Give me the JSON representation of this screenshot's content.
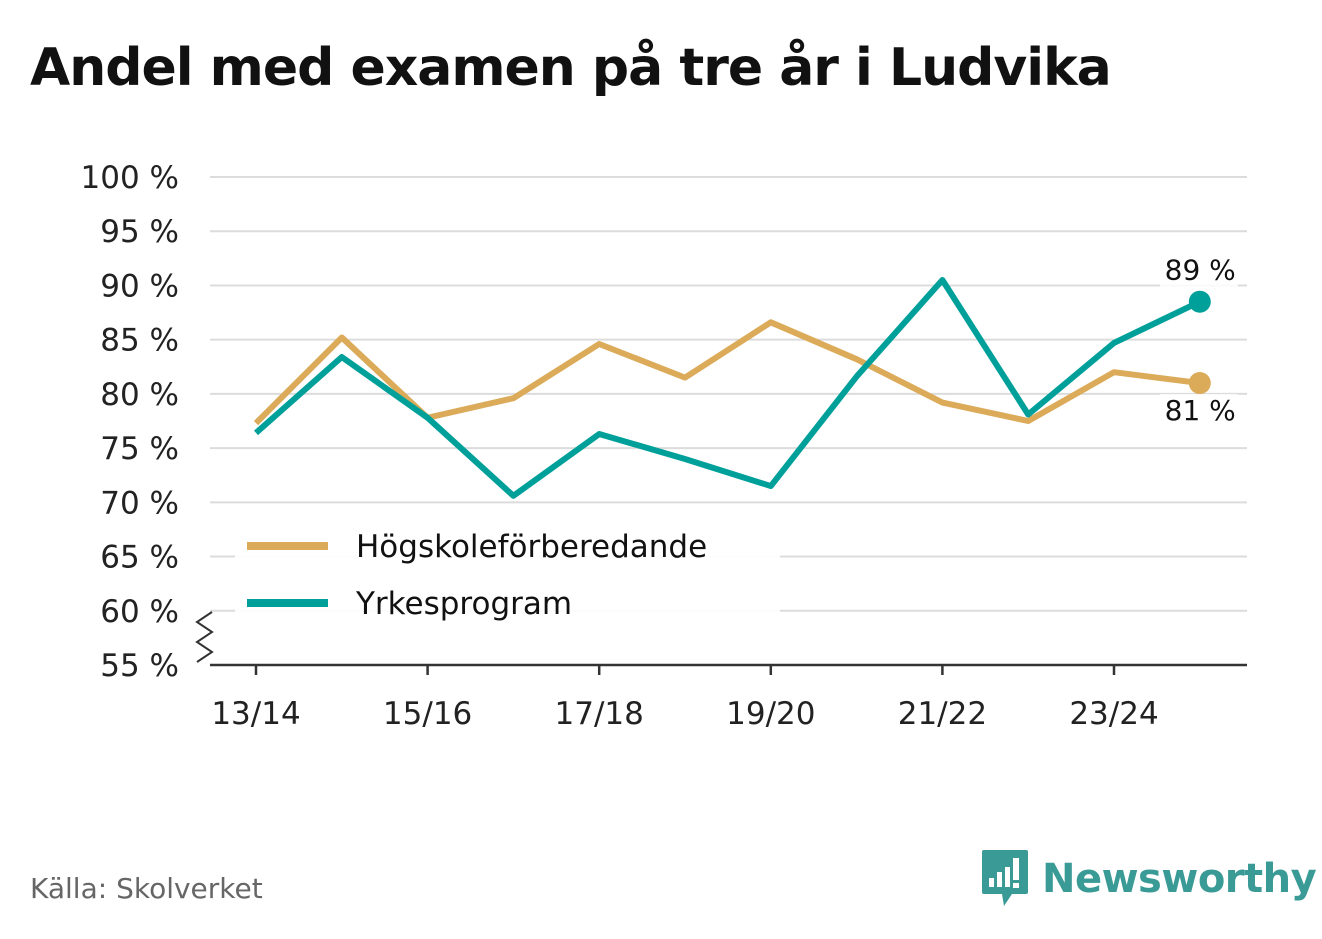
{
  "chart_data": {
    "type": "line",
    "title": "Andel med examen på tre år i Ludvika",
    "x": [
      "13/14",
      "14/15",
      "15/16",
      "16/17",
      "17/18",
      "18/19",
      "19/20",
      "20/21",
      "21/22",
      "22/23",
      "23/24",
      "24/25"
    ],
    "x_tick_labels": [
      "13/14",
      "15/16",
      "17/18",
      "19/20",
      "21/22",
      "23/24"
    ],
    "y_tick_labels": [
      "100 %",
      "95 %",
      "90 %",
      "85 %",
      "80 %",
      "75 %",
      "70 %",
      "65 %",
      "60 %",
      "55 %"
    ],
    "ylim": [
      55,
      100
    ],
    "y_axis_break": true,
    "grid": true,
    "legend_position": "bottom-left",
    "series": [
      {
        "name": "Högskoleförberedande",
        "color": "#dbab5a",
        "values": [
          77.3,
          85.2,
          77.8,
          79.6,
          84.6,
          81.5,
          86.6,
          83.2,
          79.2,
          77.5,
          82.0,
          81.0
        ],
        "end_label": "81 %"
      },
      {
        "name": "Yrkesprogram",
        "color": "#00a09a",
        "values": [
          76.4,
          83.4,
          77.8,
          70.6,
          76.3,
          74.0,
          71.5,
          81.6,
          90.5,
          78.1,
          84.7,
          88.5
        ],
        "end_label": "89 %"
      }
    ]
  },
  "footer": {
    "source": "Källa: Skolverket",
    "brand": "Newsworthy",
    "brand_color": "#3a9a96"
  }
}
